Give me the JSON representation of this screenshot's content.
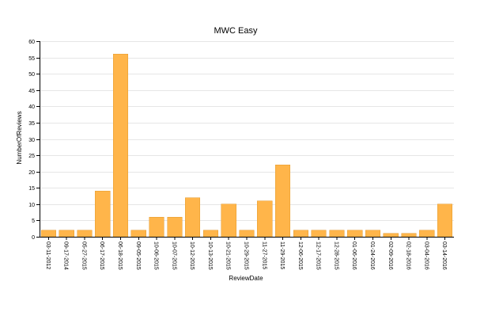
{
  "colors": {
    "bar_fill": "#ffb54a",
    "bar_stroke": "#e39a2e",
    "grid": "#e6e6e6",
    "axis": "#000000"
  },
  "chart_data": {
    "type": "bar",
    "title": "MWC Easy",
    "xlabel": "ReviewDate",
    "ylabel": "NumberOfReviews",
    "ylim": [
      0,
      60
    ],
    "yticks": [
      0,
      5,
      10,
      15,
      20,
      25,
      30,
      35,
      40,
      45,
      50,
      55,
      60
    ],
    "grid": "horizontal",
    "categories": [
      "03-11-2012",
      "09-17-2014",
      "05-27-2015",
      "06-17-2015",
      "06-18-2015",
      "09-05-2015",
      "10-06-2015",
      "10-07-2015",
      "10-12-2015",
      "10-13-2015",
      "10-21-2015",
      "10-29-2015",
      "11-27-2015",
      "11-29-2015",
      "12-06-2015",
      "12-17-2015",
      "12-28-2015",
      "01-06-2016",
      "01-24-2016",
      "02-09-2016",
      "02-18-2016",
      "03-04-2016",
      "03-14-2016"
    ],
    "values": [
      2,
      2,
      2,
      14,
      56,
      2,
      6,
      6,
      12,
      2,
      10,
      2,
      11,
      22,
      2,
      2,
      2,
      2,
      2,
      1,
      1,
      2,
      10
    ]
  }
}
